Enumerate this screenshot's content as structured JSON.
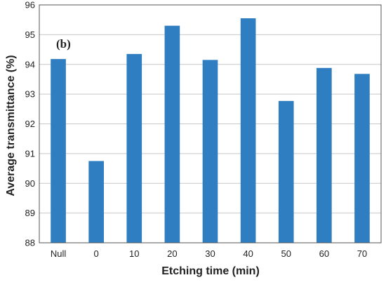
{
  "chart_data": {
    "type": "bar",
    "panel_label": "(b)",
    "xlabel": "Etching time (min)",
    "ylabel": "Average transmittance (%)",
    "categories": [
      "Null",
      "0",
      "10",
      "20",
      "30",
      "40",
      "50",
      "60",
      "70"
    ],
    "values": [
      94.18,
      90.75,
      94.35,
      95.3,
      94.15,
      95.55,
      92.77,
      93.88,
      93.68
    ],
    "ylim": [
      88,
      96
    ],
    "yticks": [
      "88",
      "89",
      "90",
      "91",
      "92",
      "93",
      "94",
      "95",
      "96"
    ],
    "grid": true,
    "legend": "none",
    "bar_color": "#2E7EC1",
    "grid_color": "#C8C8C8"
  }
}
